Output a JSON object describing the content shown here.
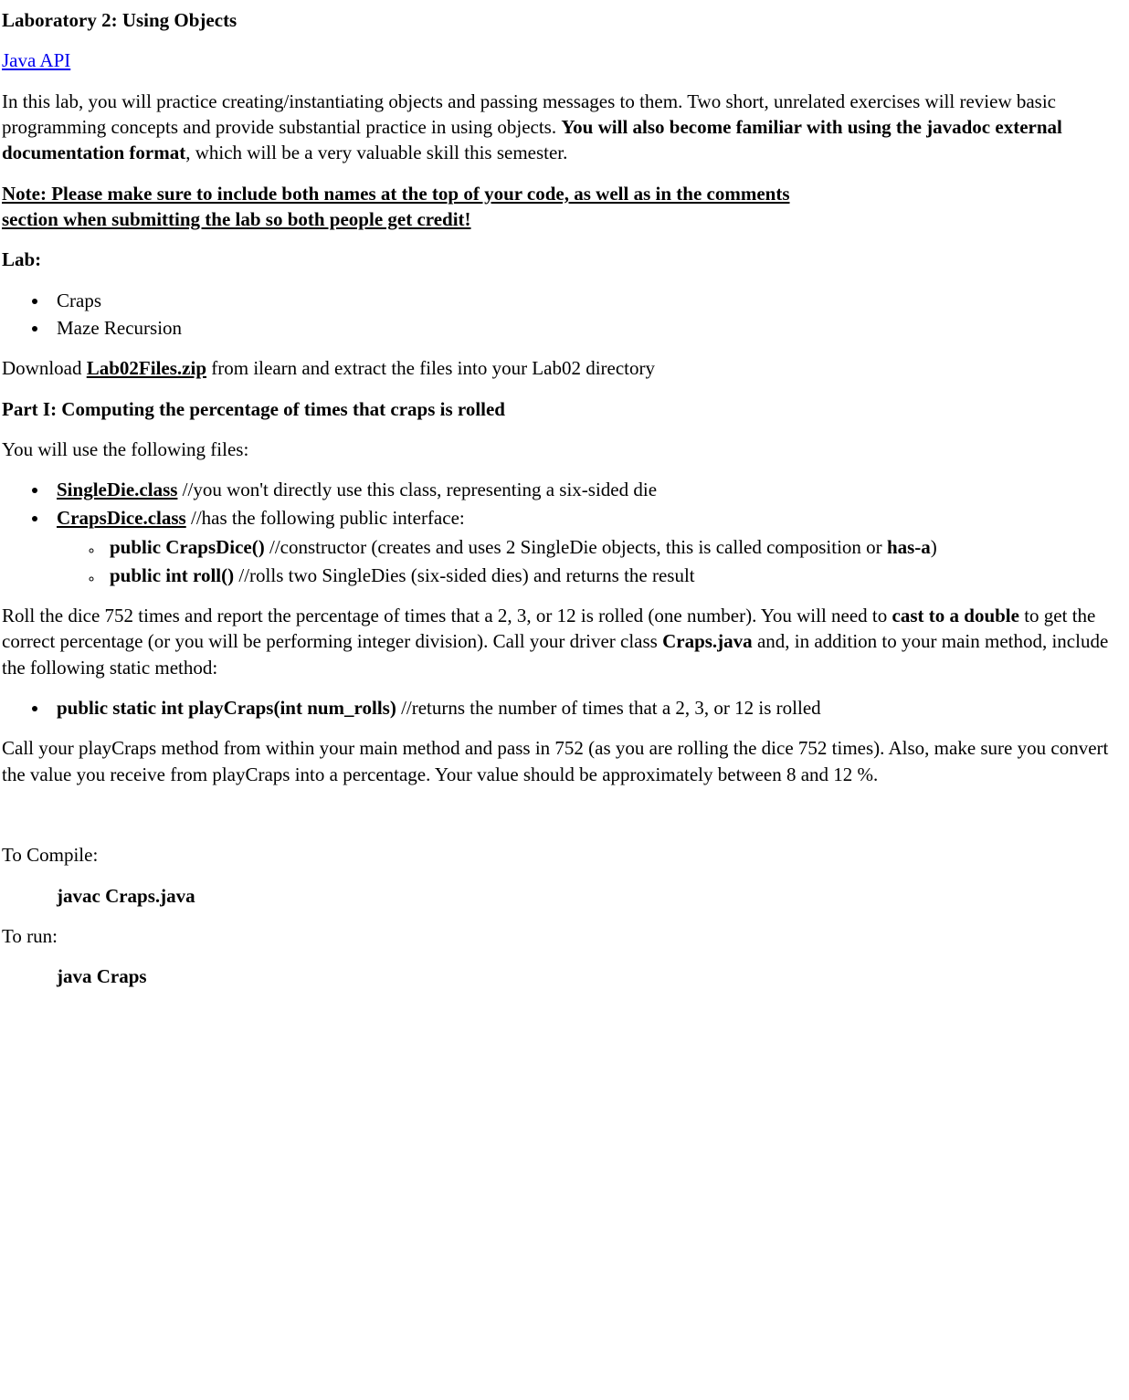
{
  "title": "Laboratory 2: Using Objects",
  "link_java_api": "Java API",
  "intro_p1": "In this lab, you will practice creating/instantiating objects and passing messages to them. Two short, unrelated exercises will review basic programming concepts and provide substantial practice in using objects. ",
  "intro_bold": "You will also become familiar with using the javadoc external documentation format",
  "intro_p2": ", which will be a very valuable skill this semester.",
  "note_line1": "Note: Please make sure to include both names at the top of your code, as well as in the comments ",
  "note_line2": "section when submitting the lab so both people get credit!",
  "lab_label": "Lab:",
  "lab_items": {
    "craps": "Craps",
    "maze": "Maze Recursion"
  },
  "download_pre": "Download ",
  "download_link": "Lab02Files.zip",
  "download_post": " from ilearn and extract the files into your Lab02 directory",
  "part1_heading": "Part I: Computing the percentage of times that craps is rolled",
  "files_intro": "You will use the following files:",
  "files": {
    "singledie_name": "SingleDie.class",
    "singledie_desc": " //you won't directly use this class, representing a six-sided die",
    "crapsdice_name": "CrapsDice.class",
    "crapsdice_desc": " //has the following public interface:",
    "ctor_sig": "public CrapsDice()",
    "ctor_desc_pre": " //constructor (creates and uses 2 SingleDie objects, this is called composition or ",
    "ctor_hasa": "has-a",
    "ctor_desc_post": ")",
    "roll_sig": "public int roll()",
    "roll_desc": " //rolls two SingleDies (six-sided dies) and returns the result"
  },
  "roll_p1_pre": "Roll the dice 752 times and report the percentage of times that a 2, 3, or 12 is rolled (one number). You will need to ",
  "roll_cast": "cast to a double",
  "roll_p1_mid": " to get the correct percentage (or you will be performing integer division). Call your driver class ",
  "roll_craps": "Craps.java",
  "roll_p1_post": " and, in addition to your main method, include the following static method:",
  "method_sig": "public static int playCraps(int num_rolls)",
  "method_desc": " //returns the number of times that a 2, 3, or 12 is rolled",
  "call_para": "Call your playCraps method from within your main method and pass in 752 (as you are rolling the dice 752 times). Also, make sure you convert the value you receive from playCraps into a percentage. Your value should be approximately between 8 and 12 %.",
  "compile_label": "To Compile:",
  "compile_cmd": "javac Craps.java",
  "run_label": "To run:",
  "run_cmd": "java Craps"
}
